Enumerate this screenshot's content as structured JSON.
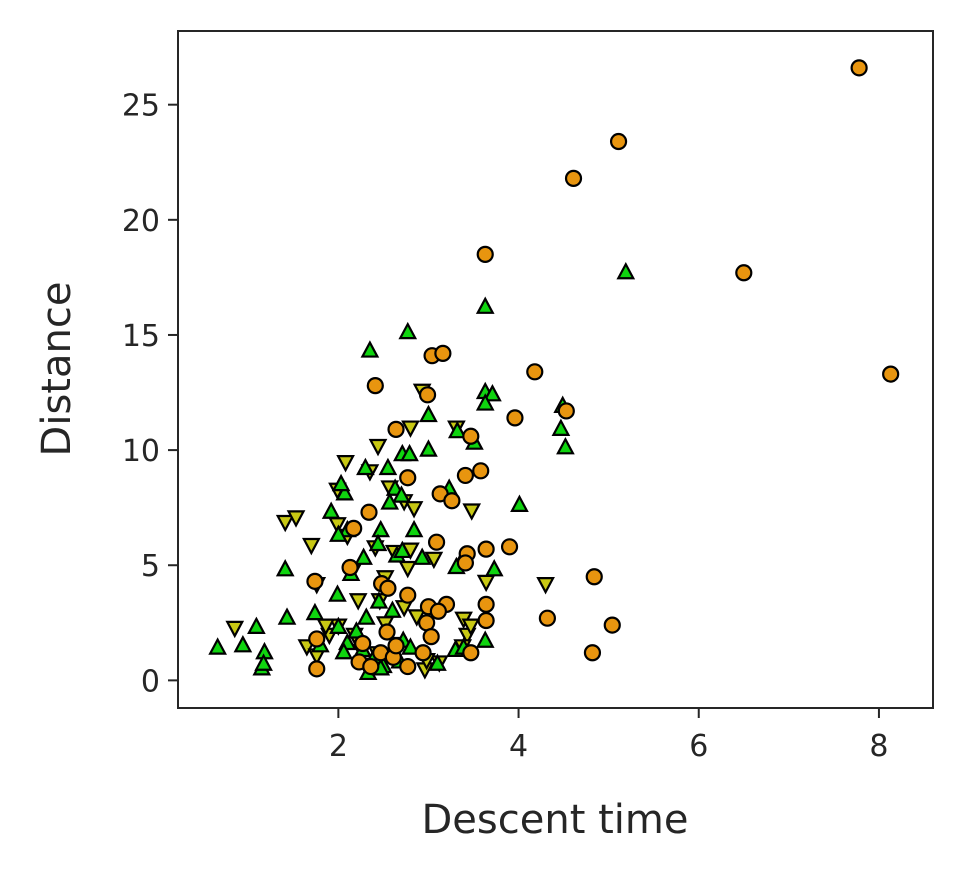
{
  "chart_data": {
    "type": "scatter",
    "title": "",
    "xlabel": "Descent time",
    "ylabel": "Distance",
    "xlim": [
      0.22,
      8.6
    ],
    "ylim": [
      -1.2,
      28.2
    ],
    "xticks": [
      2,
      4,
      6,
      8
    ],
    "yticks": [
      0,
      5,
      10,
      15,
      20,
      25
    ],
    "grid": false,
    "legend": "none",
    "series": [
      {
        "marker": "circle",
        "color": "#e8950f",
        "points": [
          [
            7.78,
            26.6
          ],
          [
            5.11,
            23.4
          ],
          [
            4.61,
            21.8
          ],
          [
            3.63,
            18.5
          ],
          [
            6.5,
            17.7
          ],
          [
            8.13,
            13.3
          ],
          [
            3.04,
            14.1
          ],
          [
            3.16,
            14.2
          ],
          [
            2.41,
            12.8
          ],
          [
            4.18,
            13.4
          ],
          [
            4.53,
            11.7
          ],
          [
            3.96,
            11.4
          ],
          [
            2.99,
            12.4
          ],
          [
            2.64,
            10.9
          ],
          [
            3.47,
            10.6
          ],
          [
            3.41,
            8.9
          ],
          [
            3.58,
            9.1
          ],
          [
            2.77,
            8.8
          ],
          [
            3.13,
            8.1
          ],
          [
            3.26,
            7.8
          ],
          [
            2.34,
            7.3
          ],
          [
            2.17,
            6.6
          ],
          [
            3.09,
            6.0
          ],
          [
            3.9,
            5.8
          ],
          [
            3.64,
            5.7
          ],
          [
            3.43,
            5.5
          ],
          [
            3.41,
            5.1
          ],
          [
            1.74,
            4.3
          ],
          [
            2.13,
            4.9
          ],
          [
            2.48,
            4.2
          ],
          [
            2.55,
            4.0
          ],
          [
            2.77,
            3.7
          ],
          [
            4.84,
            4.5
          ],
          [
            3.64,
            3.3
          ],
          [
            3.2,
            3.3
          ],
          [
            3.0,
            3.2
          ],
          [
            3.11,
            3.0
          ],
          [
            2.98,
            2.5
          ],
          [
            3.64,
            2.6
          ],
          [
            4.32,
            2.7
          ],
          [
            5.04,
            2.4
          ],
          [
            2.54,
            2.1
          ],
          [
            3.03,
            1.9
          ],
          [
            1.76,
            1.8
          ],
          [
            2.27,
            1.6
          ],
          [
            2.47,
            1.2
          ],
          [
            2.61,
            1.0
          ],
          [
            3.47,
            1.2
          ],
          [
            2.23,
            0.8
          ],
          [
            2.36,
            0.6
          ],
          [
            2.77,
            0.6
          ],
          [
            2.94,
            1.2
          ],
          [
            4.82,
            1.2
          ],
          [
            1.76,
            0.5
          ],
          [
            2.64,
            1.5
          ]
        ]
      },
      {
        "marker": "triangle-up",
        "color": "#0fd40f",
        "points": [
          [
            5.19,
            17.7
          ],
          [
            3.63,
            16.2
          ],
          [
            2.77,
            15.1
          ],
          [
            2.35,
            14.3
          ],
          [
            3.63,
            12.5
          ],
          [
            3.71,
            12.4
          ],
          [
            3.63,
            12.0
          ],
          [
            4.49,
            11.9
          ],
          [
            4.47,
            10.9
          ],
          [
            3.0,
            11.5
          ],
          [
            3.32,
            10.8
          ],
          [
            3.51,
            10.3
          ],
          [
            4.52,
            10.1
          ],
          [
            3.0,
            10.0
          ],
          [
            2.71,
            9.8
          ],
          [
            2.79,
            9.8
          ],
          [
            2.55,
            9.2
          ],
          [
            2.3,
            9.2
          ],
          [
            2.07,
            8.1
          ],
          [
            2.03,
            8.5
          ],
          [
            2.63,
            8.3
          ],
          [
            2.7,
            8.0
          ],
          [
            3.23,
            8.3
          ],
          [
            4.01,
            7.6
          ],
          [
            1.92,
            7.3
          ],
          [
            2.57,
            7.7
          ],
          [
            2.47,
            6.5
          ],
          [
            2.1,
            6.5
          ],
          [
            2.0,
            6.3
          ],
          [
            2.84,
            6.5
          ],
          [
            3.4,
            5.4
          ],
          [
            2.28,
            5.3
          ],
          [
            2.44,
            5.9
          ],
          [
            2.65,
            5.4
          ],
          [
            2.93,
            5.3
          ],
          [
            2.71,
            5.6
          ],
          [
            1.41,
            4.8
          ],
          [
            3.31,
            4.9
          ],
          [
            3.73,
            4.8
          ],
          [
            2.14,
            4.6
          ],
          [
            1.99,
            3.7
          ],
          [
            2.45,
            3.4
          ],
          [
            2.6,
            3.0
          ],
          [
            1.74,
            2.9
          ],
          [
            1.43,
            2.7
          ],
          [
            1.09,
            2.3
          ],
          [
            0.66,
            1.4
          ],
          [
            0.94,
            1.5
          ],
          [
            1.18,
            1.2
          ],
          [
            1.15,
            0.5
          ],
          [
            1.17,
            0.7
          ],
          [
            2.1,
            1.6
          ],
          [
            2.27,
            1.3
          ],
          [
            2.2,
            2.1
          ],
          [
            3.3,
            1.3
          ],
          [
            3.63,
            1.7
          ],
          [
            3.39,
            1.4
          ],
          [
            2.0,
            2.3
          ],
          [
            2.31,
            2.7
          ],
          [
            2.72,
            1.7
          ],
          [
            2.8,
            1.4
          ],
          [
            2.4,
            1.0
          ],
          [
            2.5,
            0.6
          ],
          [
            2.68,
            0.8
          ],
          [
            2.33,
            0.3
          ],
          [
            2.47,
            0.5
          ],
          [
            2.06,
            1.2
          ],
          [
            1.8,
            1.5
          ],
          [
            3.1,
            0.7
          ]
        ]
      },
      {
        "marker": "triangle-down",
        "color": "#c8c814",
        "points": [
          [
            2.93,
            12.6
          ],
          [
            2.44,
            10.2
          ],
          [
            2.8,
            11.0
          ],
          [
            3.31,
            11.0
          ],
          [
            2.35,
            9.1
          ],
          [
            2.08,
            9.5
          ],
          [
            2.57,
            8.4
          ],
          [
            1.99,
            8.3
          ],
          [
            2.73,
            7.8
          ],
          [
            2.84,
            7.5
          ],
          [
            3.48,
            7.4
          ],
          [
            1.41,
            6.9
          ],
          [
            1.53,
            7.1
          ],
          [
            1.99,
            6.8
          ],
          [
            2.1,
            6.3
          ],
          [
            1.7,
            5.9
          ],
          [
            2.41,
            5.8
          ],
          [
            2.62,
            5.6
          ],
          [
            2.8,
            5.7
          ],
          [
            3.06,
            5.3
          ],
          [
            2.77,
            4.9
          ],
          [
            2.16,
            4.8
          ],
          [
            1.76,
            4.2
          ],
          [
            2.52,
            4.5
          ],
          [
            4.3,
            4.2
          ],
          [
            3.64,
            4.3
          ],
          [
            2.46,
            3.5
          ],
          [
            2.73,
            3.2
          ],
          [
            3.39,
            2.7
          ],
          [
            0.85,
            2.3
          ],
          [
            1.65,
            1.5
          ],
          [
            1.9,
            2.0
          ],
          [
            2.0,
            2.4
          ],
          [
            2.18,
            2.0
          ],
          [
            2.52,
            2.5
          ],
          [
            2.87,
            2.8
          ],
          [
            3.43,
            2.0
          ],
          [
            3.47,
            2.4
          ],
          [
            1.76,
            1.1
          ],
          [
            2.26,
            1.3
          ],
          [
            2.43,
            1.2
          ],
          [
            2.96,
            0.5
          ],
          [
            3.12,
            0.8
          ],
          [
            2.3,
            0.7
          ],
          [
            2.66,
            1.6
          ],
          [
            3.38,
            1.5
          ],
          [
            2.22,
            3.5
          ],
          [
            1.86,
            2.4
          ],
          [
            2.98,
            0.9
          ]
        ]
      }
    ]
  }
}
